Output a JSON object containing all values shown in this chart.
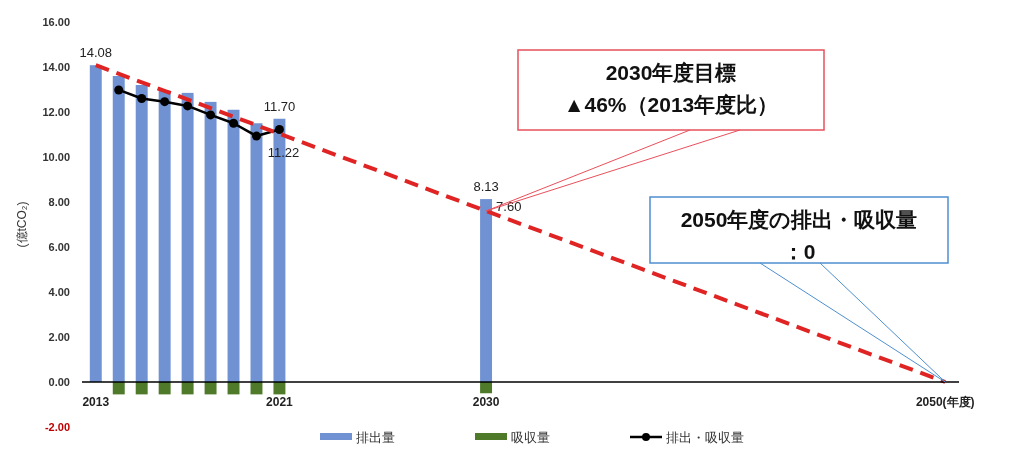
{
  "chart_data": {
    "type": "bar",
    "ylabel": "(億tCO₂)",
    "xlim": [
      2012.4,
      2050.6
    ],
    "xticks": [
      2013,
      2021,
      2030,
      {
        "value": 2050,
        "label": "2050(年度)"
      }
    ],
    "ylim": [
      -2,
      16
    ],
    "yticks": [
      {
        "value": -2,
        "label": "-2.00"
      },
      {
        "value": 0,
        "label": "0.00"
      },
      {
        "value": 2,
        "label": "2.00"
      },
      {
        "value": 4,
        "label": "4.00"
      },
      {
        "value": 6,
        "label": "6.00"
      },
      {
        "value": 8,
        "label": "8.00"
      },
      {
        "value": 10,
        "label": "10.00"
      },
      {
        "value": 12,
        "label": "12.00"
      },
      {
        "value": 14,
        "label": "14.00"
      },
      {
        "value": 16,
        "label": "16.00"
      }
    ],
    "grid": false,
    "legend": "bottom",
    "series": [
      {
        "name": "排出量",
        "color": "#7092d2",
        "x": [
          2013,
          2014,
          2015,
          2016,
          2017,
          2018,
          2019,
          2020,
          2021,
          2030
        ],
        "values": [
          14.08,
          13.6,
          13.2,
          12.95,
          12.85,
          12.45,
          12.1,
          11.5,
          11.7,
          8.13
        ],
        "value_labels": [
          "14.08",
          null,
          null,
          null,
          null,
          null,
          null,
          null,
          "11.70",
          "8.13"
        ]
      },
      {
        "name": "吸収量",
        "color": "#4e7a2a",
        "x": [
          2014,
          2015,
          2016,
          2017,
          2018,
          2019,
          2020,
          2021,
          2030
        ],
        "values": [
          -0.55,
          -0.55,
          -0.55,
          -0.55,
          -0.55,
          -0.55,
          -0.55,
          -0.55,
          -0.5
        ]
      },
      {
        "name": "排出・吸収量",
        "type": "line",
        "color": "#000000",
        "marker": "circle",
        "line_style": "solid",
        "x": [
          2014,
          2015,
          2016,
          2017,
          2018,
          2019,
          2020,
          2021
        ],
        "values": [
          12.98,
          12.6,
          12.46,
          12.27,
          11.87,
          11.5,
          10.93,
          11.22
        ],
        "value_labels": [
          null,
          null,
          null,
          null,
          null,
          null,
          null,
          "11.22"
        ]
      },
      {
        "type": "line",
        "color": "#e02424",
        "marker": "none",
        "line_style": "dashed",
        "x": [
          2013,
          2030,
          2050
        ],
        "values": [
          14.08,
          7.6,
          0
        ],
        "value_labels": [
          null,
          "7.60",
          null
        ]
      }
    ],
    "annotations": [
      "2030年度目標",
      "▲46%（2013年度比）",
      "2050年度の排出・吸収量",
      "：0"
    ]
  }
}
